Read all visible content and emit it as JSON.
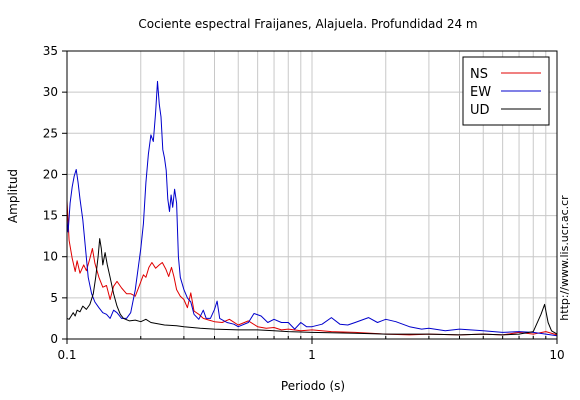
{
  "chart_data": {
    "type": "line",
    "title": "Cociente espectral Fraijanes, Alajuela. Profundidad 24 m",
    "xlabel": "Periodo (s)",
    "ylabel": "Amplitud",
    "xscale": "log",
    "xlim": [
      0.1,
      10
    ],
    "ylim": [
      0,
      35
    ],
    "x_ticks": [
      0.1,
      1,
      10
    ],
    "x_tick_labels": [
      "0.1",
      "1",
      "10"
    ],
    "y_ticks": [
      0,
      5,
      10,
      15,
      20,
      25,
      30,
      35
    ],
    "y_tick_labels": [
      "0",
      "5",
      "10",
      "15",
      "20",
      "25",
      "30",
      "35"
    ],
    "grid": true,
    "legend_position": "top-right",
    "watermark": "http://www.lis.ucr.ac.cr",
    "series": [
      {
        "name": "NS",
        "color": "#e00000",
        "points": [
          [
            0.1,
            16.8
          ],
          [
            0.102,
            12.0
          ],
          [
            0.105,
            9.8
          ],
          [
            0.108,
            8.2
          ],
          [
            0.11,
            9.5
          ],
          [
            0.113,
            8.0
          ],
          [
            0.117,
            9.0
          ],
          [
            0.12,
            8.3
          ],
          [
            0.124,
            9.8
          ],
          [
            0.127,
            11.0
          ],
          [
            0.13,
            9.2
          ],
          [
            0.135,
            7.5
          ],
          [
            0.14,
            6.3
          ],
          [
            0.145,
            6.5
          ],
          [
            0.15,
            4.8
          ],
          [
            0.155,
            6.4
          ],
          [
            0.16,
            7.0
          ],
          [
            0.167,
            6.2
          ],
          [
            0.175,
            5.5
          ],
          [
            0.182,
            5.5
          ],
          [
            0.19,
            5.2
          ],
          [
            0.197,
            6.4
          ],
          [
            0.205,
            7.8
          ],
          [
            0.21,
            7.5
          ],
          [
            0.216,
            8.7
          ],
          [
            0.222,
            9.3
          ],
          [
            0.23,
            8.6
          ],
          [
            0.238,
            9.0
          ],
          [
            0.245,
            9.3
          ],
          [
            0.253,
            8.5
          ],
          [
            0.26,
            7.6
          ],
          [
            0.267,
            8.7
          ],
          [
            0.273,
            7.6
          ],
          [
            0.28,
            6.0
          ],
          [
            0.29,
            5.2
          ],
          [
            0.3,
            4.8
          ],
          [
            0.31,
            3.8
          ],
          [
            0.32,
            5.6
          ],
          [
            0.33,
            3.4
          ],
          [
            0.345,
            3.0
          ],
          [
            0.36,
            2.5
          ],
          [
            0.38,
            2.3
          ],
          [
            0.4,
            2.1
          ],
          [
            0.43,
            2.0
          ],
          [
            0.46,
            2.4
          ],
          [
            0.5,
            1.7
          ],
          [
            0.55,
            2.2
          ],
          [
            0.6,
            1.5
          ],
          [
            0.65,
            1.3
          ],
          [
            0.7,
            1.4
          ],
          [
            0.75,
            1.1
          ],
          [
            0.8,
            1.2
          ],
          [
            0.9,
            1.0
          ],
          [
            1.0,
            1.1
          ],
          [
            1.2,
            0.9
          ],
          [
            1.5,
            0.8
          ],
          [
            2.0,
            0.6
          ],
          [
            2.5,
            0.5
          ],
          [
            3.0,
            0.6
          ],
          [
            4.0,
            0.5
          ],
          [
            5.0,
            0.6
          ],
          [
            6.0,
            0.5
          ],
          [
            7.0,
            0.8
          ],
          [
            8.0,
            0.6
          ],
          [
            9.0,
            0.9
          ],
          [
            10.0,
            0.5
          ]
        ]
      },
      {
        "name": "EW",
        "color": "#0000cc",
        "points": [
          [
            0.1,
            14.5
          ],
          [
            0.101,
            13.0
          ],
          [
            0.103,
            16.5
          ],
          [
            0.105,
            18.5
          ],
          [
            0.107,
            19.8
          ],
          [
            0.109,
            20.6
          ],
          [
            0.111,
            19.0
          ],
          [
            0.113,
            17.0
          ],
          [
            0.116,
            14.5
          ],
          [
            0.119,
            11.0
          ],
          [
            0.122,
            7.5
          ],
          [
            0.126,
            5.5
          ],
          [
            0.13,
            4.5
          ],
          [
            0.135,
            3.8
          ],
          [
            0.14,
            3.2
          ],
          [
            0.145,
            3.0
          ],
          [
            0.15,
            2.5
          ],
          [
            0.155,
            3.5
          ],
          [
            0.16,
            3.2
          ],
          [
            0.167,
            2.5
          ],
          [
            0.175,
            2.5
          ],
          [
            0.182,
            3.2
          ],
          [
            0.19,
            6.0
          ],
          [
            0.196,
            9.0
          ],
          [
            0.2,
            11.0
          ],
          [
            0.205,
            14.0
          ],
          [
            0.21,
            19.0
          ],
          [
            0.215,
            22.5
          ],
          [
            0.22,
            24.8
          ],
          [
            0.225,
            24.0
          ],
          [
            0.23,
            27.5
          ],
          [
            0.234,
            31.3
          ],
          [
            0.238,
            28.5
          ],
          [
            0.242,
            27.0
          ],
          [
            0.246,
            23.0
          ],
          [
            0.25,
            22.0
          ],
          [
            0.254,
            20.5
          ],
          [
            0.258,
            17.0
          ],
          [
            0.262,
            15.5
          ],
          [
            0.266,
            17.5
          ],
          [
            0.27,
            16.0
          ],
          [
            0.275,
            18.2
          ],
          [
            0.28,
            16.5
          ],
          [
            0.285,
            10.0
          ],
          [
            0.29,
            7.5
          ],
          [
            0.3,
            6.0
          ],
          [
            0.31,
            5.0
          ],
          [
            0.32,
            4.5
          ],
          [
            0.33,
            3.0
          ],
          [
            0.345,
            2.4
          ],
          [
            0.36,
            3.5
          ],
          [
            0.37,
            2.5
          ],
          [
            0.385,
            2.5
          ],
          [
            0.4,
            3.6
          ],
          [
            0.41,
            4.6
          ],
          [
            0.42,
            2.5
          ],
          [
            0.45,
            2.0
          ],
          [
            0.48,
            1.8
          ],
          [
            0.5,
            1.5
          ],
          [
            0.55,
            2.0
          ],
          [
            0.58,
            3.1
          ],
          [
            0.62,
            2.8
          ],
          [
            0.66,
            2.0
          ],
          [
            0.7,
            2.4
          ],
          [
            0.75,
            2.0
          ],
          [
            0.8,
            2.0
          ],
          [
            0.85,
            1.2
          ],
          [
            0.9,
            2.0
          ],
          [
            0.95,
            1.5
          ],
          [
            1.0,
            1.5
          ],
          [
            1.1,
            1.8
          ],
          [
            1.2,
            2.6
          ],
          [
            1.3,
            1.8
          ],
          [
            1.4,
            1.7
          ],
          [
            1.5,
            2.0
          ],
          [
            1.7,
            2.6
          ],
          [
            1.85,
            2.0
          ],
          [
            2.0,
            2.4
          ],
          [
            2.2,
            2.1
          ],
          [
            2.5,
            1.5
          ],
          [
            2.8,
            1.2
          ],
          [
            3.0,
            1.3
          ],
          [
            3.5,
            1.0
          ],
          [
            4.0,
            1.2
          ],
          [
            5.0,
            1.0
          ],
          [
            6.0,
            0.8
          ],
          [
            7.0,
            0.9
          ],
          [
            8.0,
            0.8
          ],
          [
            9.0,
            0.6
          ],
          [
            10.0,
            0.4
          ]
        ]
      },
      {
        "name": "UD",
        "color": "#000000",
        "points": [
          [
            0.1,
            2.5
          ],
          [
            0.102,
            2.4
          ],
          [
            0.104,
            2.8
          ],
          [
            0.106,
            3.2
          ],
          [
            0.108,
            2.8
          ],
          [
            0.11,
            3.5
          ],
          [
            0.113,
            3.3
          ],
          [
            0.116,
            4.0
          ],
          [
            0.12,
            3.6
          ],
          [
            0.124,
            4.2
          ],
          [
            0.128,
            5.5
          ],
          [
            0.131,
            7.5
          ],
          [
            0.134,
            10.0
          ],
          [
            0.136,
            12.2
          ],
          [
            0.138,
            11.0
          ],
          [
            0.14,
            9.0
          ],
          [
            0.143,
            10.5
          ],
          [
            0.146,
            9.0
          ],
          [
            0.15,
            7.5
          ],
          [
            0.155,
            5.5
          ],
          [
            0.16,
            4.0
          ],
          [
            0.165,
            3.0
          ],
          [
            0.17,
            2.5
          ],
          [
            0.18,
            2.2
          ],
          [
            0.19,
            2.3
          ],
          [
            0.2,
            2.1
          ],
          [
            0.21,
            2.4
          ],
          [
            0.22,
            2.0
          ],
          [
            0.23,
            1.9
          ],
          [
            0.25,
            1.7
          ],
          [
            0.28,
            1.6
          ],
          [
            0.3,
            1.5
          ],
          [
            0.35,
            1.3
          ],
          [
            0.4,
            1.2
          ],
          [
            0.5,
            1.1
          ],
          [
            0.6,
            1.1
          ],
          [
            0.7,
            1.0
          ],
          [
            0.8,
            0.9
          ],
          [
            1.0,
            0.8
          ],
          [
            1.5,
            0.7
          ],
          [
            2.0,
            0.6
          ],
          [
            3.0,
            0.6
          ],
          [
            4.0,
            0.5
          ],
          [
            5.0,
            0.6
          ],
          [
            6.0,
            0.5
          ],
          [
            7.0,
            0.6
          ],
          [
            8.0,
            0.9
          ],
          [
            8.6,
            3.0
          ],
          [
            8.9,
            4.2
          ],
          [
            9.2,
            2.0
          ],
          [
            9.5,
            1.0
          ],
          [
            10.0,
            0.6
          ]
        ]
      }
    ]
  }
}
